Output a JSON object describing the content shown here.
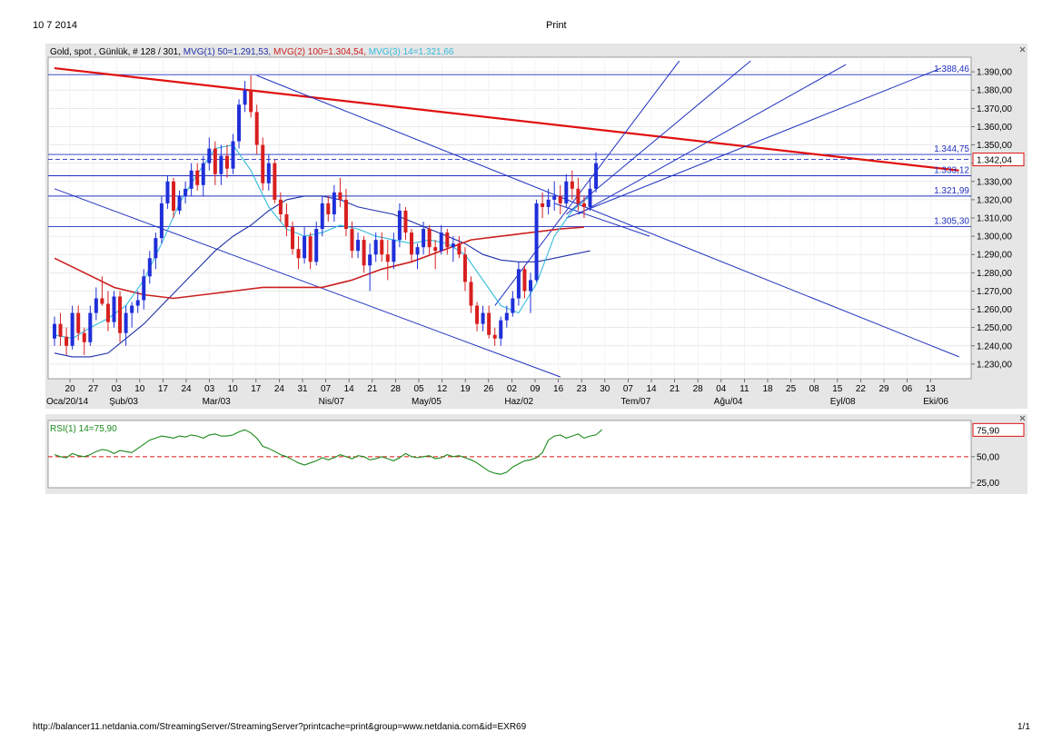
{
  "page": {
    "date": "10 7 2014",
    "title": "Print",
    "footer_url": "http://balancer11.netdania.com/StreamingServer/StreamingServer?printcache=print&group=www.netdania.com&id=EXR69",
    "page_number": "1/1"
  },
  "legend": {
    "instrument": "Gold, spot , Günlük, # 128 / 301, ",
    "mvg1": "MVG(1) 50=1.291,53, ",
    "mvg2": "MVG(2) 100=1.304,54, ",
    "mvg3": "MVG(3) 14=1.321,66"
  },
  "colors": {
    "up_candle": "#1f2fd8",
    "down_candle": "#d81f1f",
    "mvg1": "#1f2fa8",
    "mvg2": "#cc1f1f",
    "mvg3": "#33bbdd",
    "trendline_red": "#e01010",
    "hline": "#2030c0",
    "rsi": "#1a8a1a",
    "chart_bg": "#ffffff",
    "panel_bg": "#e6e6e6"
  },
  "chart_data": [
    {
      "type": "candlestick",
      "ylim": [
        1222,
        1398
      ],
      "y_ticks": [
        "1.230,00",
        "1.240,00",
        "1.250,00",
        "1.260,00",
        "1.270,00",
        "1.280,00",
        "1.290,00",
        "1.300,00",
        "1.310,00",
        "1.320,00",
        "1.330,00",
        "1.340,00",
        "1.350,00",
        "1.360,00",
        "1.370,00",
        "1.380,00",
        "1.390,00"
      ],
      "y_tick_values": [
        1230,
        1240,
        1250,
        1260,
        1270,
        1280,
        1290,
        1300,
        1310,
        1320,
        1330,
        1340,
        1350,
        1360,
        1370,
        1380,
        1390
      ],
      "x_ticks": [
        "20",
        "27",
        "03",
        "10",
        "17",
        "24",
        "03",
        "10",
        "17",
        "24",
        "31",
        "07",
        "14",
        "21",
        "28",
        "05",
        "12",
        "19",
        "26",
        "02",
        "09",
        "16",
        "23",
        "30",
        "07",
        "14",
        "21",
        "28",
        "04",
        "11",
        "18",
        "25",
        "08",
        "15",
        "22",
        "29",
        "06",
        "13"
      ],
      "x_month_labels": [
        "Oca/20/14",
        "Şub/03",
        "Mar/03",
        "Nis/07",
        "May/05",
        "Haz/02",
        "Tem/07",
        "Ağu/04",
        "Eyl/08",
        "Eki/06"
      ],
      "x_month_label_weeks": [
        0,
        2,
        6,
        11,
        15,
        19,
        24,
        28,
        33,
        37
      ],
      "x_unit": "week index from Oca/20/14",
      "levels": [
        {
          "label": "1.388,46",
          "value": 1388.46
        },
        {
          "label": "1.344,75",
          "value": 1344.75
        },
        {
          "label": "1.333,12",
          "value": 1333.12
        },
        {
          "label": "1.321,99",
          "value": 1321.99
        },
        {
          "label": "1.305,30",
          "value": 1305.3
        }
      ],
      "current_price": {
        "label": "1.342,04",
        "value": 1342.04
      },
      "ohlc": [
        [
          1244,
          1256,
          1240,
          1252
        ],
        [
          1252,
          1258,
          1240,
          1245
        ],
        [
          1245,
          1250,
          1235,
          1240
        ],
        [
          1240,
          1262,
          1238,
          1258
        ],
        [
          1258,
          1262,
          1243,
          1247
        ],
        [
          1247,
          1250,
          1235,
          1242
        ],
        [
          1242,
          1262,
          1240,
          1258
        ],
        [
          1258,
          1272,
          1254,
          1266
        ],
        [
          1266,
          1278,
          1262,
          1263
        ],
        [
          1263,
          1270,
          1248,
          1253
        ],
        [
          1253,
          1270,
          1250,
          1267
        ],
        [
          1267,
          1270,
          1242,
          1247
        ],
        [
          1247,
          1262,
          1240,
          1258
        ],
        [
          1258,
          1264,
          1250,
          1262
        ],
        [
          1262,
          1270,
          1258,
          1265
        ],
        [
          1265,
          1282,
          1260,
          1278
        ],
        [
          1278,
          1292,
          1274,
          1288
        ],
        [
          1288,
          1302,
          1282,
          1299
        ],
        [
          1299,
          1322,
          1296,
          1318
        ],
        [
          1318,
          1333,
          1315,
          1330
        ],
        [
          1330,
          1332,
          1310,
          1314
        ],
        [
          1314,
          1325,
          1312,
          1322
        ],
        [
          1322,
          1330,
          1318,
          1326
        ],
        [
          1326,
          1340,
          1322,
          1336
        ],
        [
          1336,
          1340,
          1325,
          1328
        ],
        [
          1328,
          1344,
          1322,
          1340
        ],
        [
          1340,
          1354,
          1336,
          1348
        ],
        [
          1348,
          1352,
          1328,
          1334
        ],
        [
          1334,
          1350,
          1328,
          1344
        ],
        [
          1344,
          1350,
          1332,
          1337
        ],
        [
          1337,
          1356,
          1334,
          1352
        ],
        [
          1352,
          1375,
          1348,
          1372
        ],
        [
          1372,
          1385,
          1368,
          1380
        ],
        [
          1380,
          1388,
          1365,
          1368
        ],
        [
          1368,
          1372,
          1345,
          1350
        ],
        [
          1350,
          1354,
          1325,
          1329
        ],
        [
          1329,
          1345,
          1325,
          1340
        ],
        [
          1340,
          1342,
          1318,
          1320
        ],
        [
          1320,
          1324,
          1308,
          1312
        ],
        [
          1312,
          1318,
          1300,
          1305
        ],
        [
          1305,
          1308,
          1290,
          1293
        ],
        [
          1293,
          1300,
          1282,
          1288
        ],
        [
          1288,
          1305,
          1285,
          1300
        ],
        [
          1300,
          1302,
          1282,
          1286
        ],
        [
          1286,
          1308,
          1284,
          1304
        ],
        [
          1304,
          1322,
          1300,
          1318
        ],
        [
          1318,
          1322,
          1308,
          1312
        ],
        [
          1312,
          1328,
          1308,
          1324
        ],
        [
          1324,
          1332,
          1316,
          1320
        ],
        [
          1320,
          1326,
          1300,
          1304
        ],
        [
          1304,
          1308,
          1288,
          1292
        ],
        [
          1292,
          1302,
          1288,
          1298
        ],
        [
          1298,
          1300,
          1280,
          1284
        ],
        [
          1284,
          1296,
          1270,
          1290
        ],
        [
          1290,
          1302,
          1286,
          1298
        ],
        [
          1298,
          1302,
          1286,
          1290
        ],
        [
          1290,
          1298,
          1276,
          1286
        ],
        [
          1286,
          1302,
          1282,
          1298
        ],
        [
          1298,
          1318,
          1294,
          1314
        ],
        [
          1314,
          1316,
          1298,
          1302
        ],
        [
          1302,
          1304,
          1286,
          1290
        ],
        [
          1290,
          1296,
          1282,
          1294
        ],
        [
          1294,
          1308,
          1290,
          1304
        ],
        [
          1304,
          1306,
          1290,
          1294
        ],
        [
          1294,
          1298,
          1282,
          1292
        ],
        [
          1292,
          1306,
          1290,
          1302
        ],
        [
          1302,
          1304,
          1290,
          1294
        ],
        [
          1294,
          1300,
          1286,
          1296
        ],
        [
          1296,
          1300,
          1288,
          1290
        ],
        [
          1290,
          1294,
          1270,
          1275
        ],
        [
          1275,
          1278,
          1258,
          1262
        ],
        [
          1262,
          1264,
          1248,
          1252
        ],
        [
          1252,
          1262,
          1248,
          1258
        ],
        [
          1258,
          1262,
          1244,
          1246
        ],
        [
          1246,
          1250,
          1240,
          1244
        ],
        [
          1244,
          1256,
          1240,
          1254
        ],
        [
          1254,
          1262,
          1250,
          1258
        ],
        [
          1258,
          1270,
          1256,
          1266
        ],
        [
          1266,
          1286,
          1262,
          1282
        ],
        [
          1282,
          1284,
          1266,
          1270
        ],
        [
          1270,
          1280,
          1258,
          1276
        ],
        [
          1276,
          1320,
          1275,
          1318
        ],
        [
          1318,
          1324,
          1310,
          1316
        ],
        [
          1316,
          1326,
          1312,
          1320
        ],
        [
          1320,
          1330,
          1314,
          1322
        ],
        [
          1322,
          1328,
          1312,
          1318
        ],
        [
          1318,
          1334,
          1316,
          1330
        ],
        [
          1330,
          1336,
          1320,
          1326
        ],
        [
          1326,
          1332,
          1314,
          1318
        ],
        [
          1318,
          1322,
          1310,
          1316
        ],
        [
          1316,
          1332,
          1314,
          1326
        ],
        [
          1326,
          1346,
          1324,
          1340
        ]
      ],
      "series": [
        {
          "name": "MVG(1) 50",
          "x": [
            0,
            3,
            6,
            9,
            12,
            15,
            18,
            21,
            24,
            27,
            30,
            33,
            36,
            39,
            42,
            45,
            48,
            51,
            54,
            57,
            60,
            63,
            66,
            69,
            72,
            75,
            78,
            81,
            84,
            87,
            90
          ],
          "values": [
            1236,
            1234,
            1234,
            1236,
            1244,
            1252,
            1262,
            1272,
            1282,
            1292,
            1300,
            1306,
            1314,
            1320,
            1322,
            1322,
            1320,
            1316,
            1314,
            1312,
            1308,
            1304,
            1300,
            1296,
            1290,
            1287,
            1286,
            1286,
            1288,
            1290,
            1292
          ]
        },
        {
          "name": "MVG(2) 100",
          "x": [
            0,
            5,
            10,
            15,
            20,
            25,
            30,
            35,
            40,
            45,
            50,
            55,
            60,
            65,
            70,
            75,
            80,
            85,
            89
          ],
          "values": [
            1288,
            1280,
            1272,
            1268,
            1266,
            1268,
            1270,
            1272,
            1272,
            1272,
            1276,
            1282,
            1286,
            1292,
            1298,
            1300,
            1302,
            1304,
            1305
          ]
        },
        {
          "name": "MVG(3) 14",
          "x": [
            0,
            3,
            6,
            9,
            12,
            15,
            18,
            21,
            24,
            27,
            30,
            33,
            36,
            39,
            42,
            45,
            48,
            51,
            54,
            57,
            60,
            63,
            66,
            69,
            72,
            75,
            78,
            81,
            84,
            87,
            90
          ],
          "values": [
            1246,
            1244,
            1250,
            1255,
            1262,
            1276,
            1296,
            1318,
            1334,
            1348,
            1350,
            1336,
            1316,
            1304,
            1300,
            1302,
            1306,
            1304,
            1300,
            1298,
            1296,
            1298,
            1296,
            1290,
            1276,
            1262,
            1258,
            1274,
            1300,
            1314,
            1322
          ]
        }
      ]
    },
    {
      "type": "line",
      "title": "RSI(1) 14=75,90",
      "ylim": [
        20,
        85
      ],
      "y_ticks": [
        "50,00",
        "25,00"
      ],
      "y_tick_values": [
        50,
        25
      ],
      "reference_line": 50,
      "current": {
        "label": "75,90",
        "value": 75.9
      },
      "series": [
        {
          "name": "RSI(1) 14",
          "values": [
            52,
            50,
            49,
            53,
            51,
            50,
            52,
            55,
            57,
            56,
            53,
            56,
            55,
            54,
            58,
            62,
            66,
            68,
            70,
            69,
            68,
            70,
            69,
            71,
            70,
            68,
            71,
            72,
            70,
            70,
            71,
            74,
            76,
            73,
            68,
            60,
            58,
            55,
            52,
            50,
            47,
            44,
            42,
            44,
            46,
            49,
            47,
            49,
            52,
            50,
            48,
            51,
            50,
            47,
            48,
            50,
            48,
            46,
            49,
            53,
            50,
            49,
            50,
            51,
            48,
            49,
            52,
            50,
            51,
            49,
            47,
            44,
            40,
            36,
            34,
            33,
            35,
            40,
            43,
            46,
            47,
            49,
            54,
            66,
            70,
            71,
            68,
            70,
            72,
            68,
            70,
            71,
            76
          ]
        }
      ]
    }
  ]
}
